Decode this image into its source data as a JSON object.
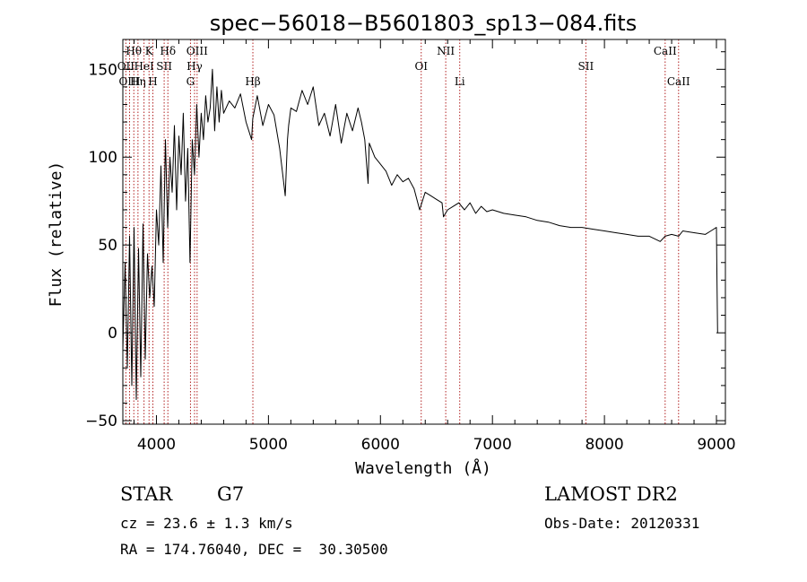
{
  "chart_data": {
    "type": "line",
    "title": "spec−56018−B5601803_sp13−084.fits",
    "xlabel": "Wavelength (Å)",
    "ylabel": "Flux (relative)",
    "xlim": [
      3700,
      9080
    ],
    "ylim": [
      -52,
      167
    ],
    "xticks": [
      4000,
      5000,
      6000,
      7000,
      8000,
      9000
    ],
    "yticks": [
      -50,
      0,
      50,
      100,
      150
    ],
    "ytick_labels": [
      "−50",
      "0",
      "50",
      "100",
      "150"
    ],
    "grid": false,
    "series": [
      {
        "x": [
          3700,
          3720,
          3740,
          3760,
          3780,
          3800,
          3820,
          3840,
          3860,
          3880,
          3900,
          3920,
          3940,
          3960,
          3980,
          4000,
          4020,
          4040,
          4060,
          4080,
          4100,
          4120,
          4140,
          4160,
          4180,
          4200,
          4220,
          4240,
          4260,
          4280,
          4300,
          4320,
          4340,
          4360,
          4380,
          4400,
          4420,
          4440,
          4460,
          4480,
          4500,
          4520,
          4540,
          4560,
          4580,
          4600,
          4650,
          4700,
          4750,
          4800,
          4850,
          4860,
          4900,
          4950,
          5000,
          5050,
          5100,
          5150,
          5170,
          5180,
          5200,
          5250,
          5300,
          5350,
          5400,
          5450,
          5500,
          5550,
          5600,
          5650,
          5700,
          5750,
          5800,
          5830,
          5860,
          5890,
          5900,
          5950,
          6000,
          6050,
          6100,
          6150,
          6200,
          6250,
          6300,
          6350,
          6400,
          6450,
          6500,
          6550,
          6563,
          6600,
          6650,
          6700,
          6750,
          6800,
          6850,
          6900,
          6950,
          7000,
          7100,
          7200,
          7300,
          7400,
          7500,
          7600,
          7700,
          7800,
          7900,
          8000,
          8100,
          8200,
          8300,
          8400,
          8498,
          8542,
          8600,
          8662,
          8700,
          8800,
          8900,
          8950,
          9000,
          9005,
          9010
        ],
        "y": [
          -10,
          40,
          -20,
          55,
          -30,
          60,
          -38,
          48,
          -25,
          62,
          -15,
          45,
          20,
          38,
          15,
          70,
          50,
          95,
          40,
          110,
          60,
          100,
          80,
          118,
          70,
          112,
          90,
          125,
          75,
          105,
          40,
          110,
          90,
          130,
          100,
          125,
          110,
          135,
          120,
          128,
          150,
          115,
          140,
          120,
          138,
          125,
          132,
          128,
          136,
          120,
          110,
          122,
          135,
          118,
          130,
          124,
          105,
          78,
          110,
          118,
          128,
          126,
          138,
          130,
          140,
          118,
          125,
          112,
          130,
          108,
          125,
          115,
          128,
          120,
          110,
          85,
          108,
          100,
          96,
          92,
          84,
          90,
          86,
          88,
          82,
          70,
          80,
          78,
          76,
          74,
          66,
          70,
          72,
          74,
          70,
          74,
          68,
          72,
          69,
          70,
          68,
          67,
          66,
          64,
          63,
          61,
          60,
          60,
          59,
          58,
          57,
          56,
          55,
          55,
          52,
          55,
          56,
          55,
          58,
          57,
          56,
          58,
          60,
          30,
          0
        ]
      }
    ],
    "line_annotations": [
      {
        "label": "Hθ",
        "x": 3798,
        "row": 0
      },
      {
        "label": "K",
        "x": 3934,
        "row": 0
      },
      {
        "label": "Hδ",
        "x": 4102,
        "row": 0
      },
      {
        "label": "OIII",
        "x": 4363,
        "row": 0
      },
      {
        "label": "NII",
        "x": 6583,
        "row": 0
      },
      {
        "label": "CaII",
        "x": 8542,
        "row": 0
      },
      {
        "label": "OII",
        "x": 3727,
        "row": 1
      },
      {
        "label": "HeI",
        "x": 3889,
        "row": 1
      },
      {
        "label": "SII",
        "x": 4069,
        "row": 1
      },
      {
        "label": "Hγ",
        "x": 4340,
        "row": 1
      },
      {
        "label": "OI",
        "x": 6364,
        "row": 1
      },
      {
        "label": "SII",
        "x": 7834,
        "row": 1
      },
      {
        "label": "OIII",
        "x": 3760,
        "row": 2
      },
      {
        "label": "Hη",
        "x": 3835,
        "row": 2
      },
      {
        "label": "H",
        "x": 3968,
        "row": 2
      },
      {
        "label": "G",
        "x": 4304,
        "row": 2
      },
      {
        "label": "Hβ",
        "x": 4861,
        "row": 2
      },
      {
        "label": "Li",
        "x": 6708,
        "row": 2
      },
      {
        "label": "CaII",
        "x": 8662,
        "row": 2
      }
    ]
  },
  "info": {
    "object_type": "STAR",
    "subclass": "G7",
    "cz": "cz = 23.6 ± 1.3 km/s",
    "radec": "RA = 174.76040, DEC =  30.30500",
    "survey": "LAMOST DR2",
    "obs_date": "Obs-Date: 20120331"
  }
}
